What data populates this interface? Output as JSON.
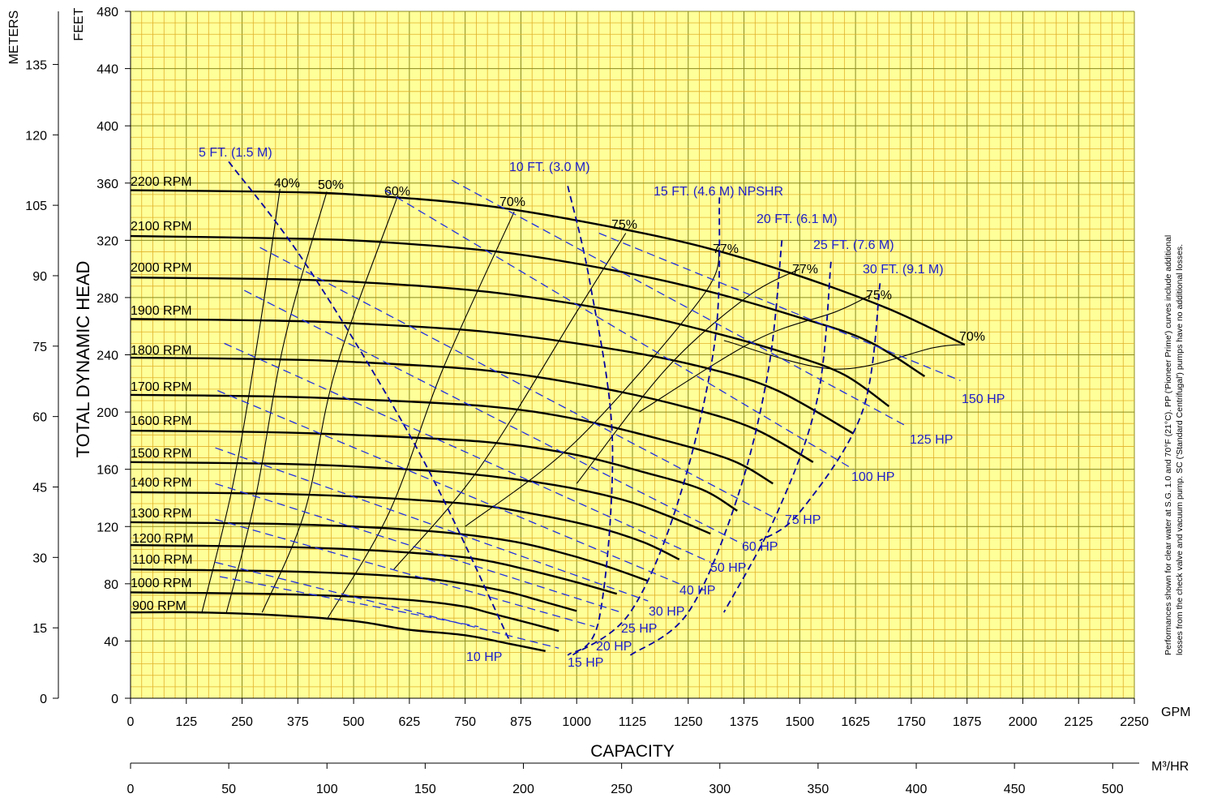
{
  "chart_data": {
    "type": "line",
    "title": "",
    "xlabel": "CAPACITY",
    "ylabel": "TOTAL DYNAMIC HEAD",
    "x_unit_primary": "GPM",
    "x_unit_secondary": "M³/HR",
    "y_unit_left_outer": "METERS",
    "y_unit_left_inner": "FEET",
    "xlim": [
      0,
      2250
    ],
    "ylim": [
      0,
      480
    ],
    "grid": true,
    "gpm_ticks": [
      "0",
      "125",
      "250",
      "375",
      "500",
      "625",
      "750",
      "875",
      "1000",
      "1125",
      "1250",
      "1375",
      "1500",
      "1625",
      "1750",
      "1875",
      "2000",
      "2125",
      "2250"
    ],
    "m3hr_ticks": [
      "0",
      "50",
      "100",
      "150",
      "200",
      "250",
      "300",
      "350",
      "400",
      "450",
      "500"
    ],
    "feet_ticks": [
      "0",
      "40",
      "80",
      "120",
      "160",
      "200",
      "240",
      "280",
      "320",
      "360",
      "400",
      "440",
      "480"
    ],
    "meter_ticks": [
      "0",
      "15",
      "30",
      "45",
      "60",
      "75",
      "90",
      "105",
      "120",
      "135"
    ],
    "note": "Performances shown for clear water at S.G. 1.0 and 70°F (21°C). PP ('Pioneer Prime') curves include additional losses from the check valve and vacuum pump. SC ('Standard Centrifugal') pumps have no additional losses.",
    "rpm_curves": [
      {
        "name": "2200 RPM",
        "points": [
          [
            0,
            355
          ],
          [
            300,
            354
          ],
          [
            500,
            352
          ],
          [
            800,
            344
          ],
          [
            1100,
            328
          ],
          [
            1300,
            314
          ],
          [
            1500,
            295
          ],
          [
            1700,
            272
          ],
          [
            1870,
            247
          ]
        ]
      },
      {
        "name": "2100 RPM",
        "points": [
          [
            0,
            323
          ],
          [
            400,
            321
          ],
          [
            600,
            318
          ],
          [
            850,
            311
          ],
          [
            1100,
            298
          ],
          [
            1300,
            284
          ],
          [
            1500,
            266
          ],
          [
            1650,
            250
          ],
          [
            1780,
            225
          ]
        ]
      },
      {
        "name": "2000 RPM",
        "points": [
          [
            0,
            294
          ],
          [
            300,
            293
          ],
          [
            500,
            291
          ],
          [
            800,
            284
          ],
          [
            1100,
            270
          ],
          [
            1300,
            256
          ],
          [
            1480,
            240
          ],
          [
            1600,
            226
          ],
          [
            1700,
            204
          ]
        ]
      },
      {
        "name": "1900 RPM",
        "points": [
          [
            0,
            265
          ],
          [
            300,
            264
          ],
          [
            500,
            262
          ],
          [
            800,
            256
          ],
          [
            1100,
            243
          ],
          [
            1300,
            230
          ],
          [
            1450,
            215
          ],
          [
            1620,
            185
          ]
        ]
      },
      {
        "name": "1800 RPM",
        "points": [
          [
            0,
            238
          ],
          [
            300,
            237
          ],
          [
            500,
            235
          ],
          [
            800,
            229
          ],
          [
            1050,
            217
          ],
          [
            1250,
            203
          ],
          [
            1400,
            188
          ],
          [
            1530,
            165
          ]
        ]
      },
      {
        "name": "1700 RPM",
        "points": [
          [
            0,
            212
          ],
          [
            300,
            211
          ],
          [
            500,
            209
          ],
          [
            800,
            204
          ],
          [
            1000,
            195
          ],
          [
            1200,
            180
          ],
          [
            1350,
            166
          ],
          [
            1440,
            150
          ]
        ]
      },
      {
        "name": "1600 RPM",
        "points": [
          [
            0,
            187
          ],
          [
            300,
            186
          ],
          [
            500,
            184
          ],
          [
            800,
            179
          ],
          [
            1000,
            170
          ],
          [
            1150,
            158
          ],
          [
            1280,
            146
          ],
          [
            1360,
            131
          ]
        ]
      },
      {
        "name": "1500 RPM",
        "points": [
          [
            0,
            165
          ],
          [
            300,
            164
          ],
          [
            500,
            162
          ],
          [
            750,
            157
          ],
          [
            950,
            149
          ],
          [
            1100,
            139
          ],
          [
            1200,
            128
          ],
          [
            1300,
            115
          ]
        ]
      },
      {
        "name": "1400 RPM",
        "points": [
          [
            0,
            144
          ],
          [
            300,
            143
          ],
          [
            500,
            141
          ],
          [
            750,
            136
          ],
          [
            900,
            129
          ],
          [
            1050,
            119
          ],
          [
            1150,
            109
          ],
          [
            1230,
            97
          ]
        ]
      },
      {
        "name": "1300 RPM",
        "points": [
          [
            0,
            123
          ],
          [
            300,
            122
          ],
          [
            500,
            120
          ],
          [
            700,
            116
          ],
          [
            850,
            110
          ],
          [
            950,
            103
          ],
          [
            1050,
            94
          ],
          [
            1160,
            82
          ]
        ]
      },
      {
        "name": "1200 RPM",
        "points": [
          [
            0,
            107
          ],
          [
            300,
            106
          ],
          [
            500,
            104
          ],
          [
            700,
            100
          ],
          [
            800,
            96
          ],
          [
            900,
            89
          ],
          [
            1000,
            81
          ],
          [
            1090,
            73
          ]
        ]
      },
      {
        "name": "1100 RPM",
        "points": [
          [
            0,
            90
          ],
          [
            300,
            89
          ],
          [
            500,
            87
          ],
          [
            650,
            84
          ],
          [
            750,
            80
          ],
          [
            850,
            74
          ],
          [
            920,
            68
          ],
          [
            1000,
            61
          ]
        ]
      },
      {
        "name": "1000 RPM",
        "points": [
          [
            0,
            74
          ],
          [
            300,
            73
          ],
          [
            500,
            71
          ],
          [
            650,
            68
          ],
          [
            750,
            64
          ],
          [
            800,
            60
          ],
          [
            900,
            52
          ],
          [
            960,
            47
          ]
        ]
      },
      {
        "name": "900 RPM",
        "points": [
          [
            0,
            60
          ],
          [
            150,
            60
          ],
          [
            330,
            58
          ],
          [
            500,
            54
          ],
          [
            620,
            48
          ],
          [
            750,
            44
          ],
          [
            850,
            38
          ],
          [
            930,
            33
          ]
        ]
      }
    ],
    "efficiency_curves": [
      {
        "name": "40%",
        "points": [
          [
            160,
            60
          ],
          [
            230,
            150
          ],
          [
            290,
            260
          ],
          [
            335,
            356
          ]
        ]
      },
      {
        "name": "50%",
        "points": [
          [
            215,
            60
          ],
          [
            280,
            140
          ],
          [
            345,
            250
          ],
          [
            440,
            354
          ]
        ]
      },
      {
        "name": "60%",
        "points": [
          [
            295,
            60
          ],
          [
            390,
            130
          ],
          [
            460,
            230
          ],
          [
            600,
            352
          ]
        ]
      },
      {
        "name": "70%",
        "points": [
          [
            440,
            55
          ],
          [
            580,
            130
          ],
          [
            700,
            230
          ],
          [
            860,
            340
          ]
        ]
      },
      {
        "name": "75%",
        "points": [
          [
            590,
            90
          ],
          [
            780,
            160
          ],
          [
            1000,
            270
          ],
          [
            1110,
            325
          ]
        ]
      },
      {
        "name": "77%",
        "points": [
          [
            750,
            120
          ],
          [
            1000,
            180
          ],
          [
            1280,
            280
          ],
          [
            1320,
            315
          ]
        ]
      },
      {
        "name": "77%",
        "points": [
          [
            1000,
            150
          ],
          [
            1200,
            230
          ],
          [
            1380,
            280
          ],
          [
            1500,
            300
          ]
        ]
      },
      {
        "name": "75%",
        "points": [
          [
            1140,
            200
          ],
          [
            1400,
            250
          ],
          [
            1580,
            270
          ],
          [
            1660,
            282
          ]
        ]
      },
      {
        "name": "70%",
        "points": [
          [
            1330,
            250
          ],
          [
            1580,
            230
          ],
          [
            1800,
            245
          ],
          [
            1870,
            247
          ]
        ]
      }
    ],
    "npshr_curves": [
      {
        "name": "5 FT. (1.5 M)",
        "points": [
          [
            220,
            375
          ],
          [
            400,
            300
          ],
          [
            650,
            170
          ],
          [
            850,
            40
          ]
        ]
      },
      {
        "name": "10 FT. (3.0 M)",
        "points": [
          [
            980,
            358
          ],
          [
            1030,
            290
          ],
          [
            1080,
            180
          ],
          [
            1050,
            55
          ],
          [
            980,
            30
          ]
        ]
      },
      {
        "name": "15 FT. (4.6 M) NPSHR",
        "points": [
          [
            1320,
            350
          ],
          [
            1310,
            250
          ],
          [
            1230,
            140
          ],
          [
            1120,
            60
          ],
          [
            990,
            30
          ]
        ]
      },
      {
        "name": "20 FT. (6.1 M)",
        "points": [
          [
            1460,
            320
          ],
          [
            1430,
            230
          ],
          [
            1360,
            140
          ],
          [
            1250,
            60
          ],
          [
            1120,
            30
          ]
        ]
      },
      {
        "name": "25 FT. (7.6 M)",
        "points": [
          [
            1570,
            305
          ],
          [
            1540,
            210
          ],
          [
            1450,
            130
          ],
          [
            1330,
            60
          ]
        ]
      },
      {
        "name": "30 FT. (9.1 M)",
        "points": [
          [
            1680,
            290
          ],
          [
            1640,
            200
          ],
          [
            1500,
            130
          ],
          [
            1410,
            110
          ]
        ]
      }
    ],
    "hp_lines": [
      {
        "name": "150 HP",
        "points": [
          [
            1050,
            325
          ],
          [
            1860,
            222
          ]
        ]
      },
      {
        "name": "125 HP",
        "points": [
          [
            720,
            362
          ],
          [
            1740,
            190
          ]
        ]
      },
      {
        "name": "100 HP",
        "points": [
          [
            570,
            355
          ],
          [
            1620,
            160
          ]
        ]
      },
      {
        "name": "75 HP",
        "points": [
          [
            290,
            315
          ],
          [
            1450,
            125
          ]
        ]
      },
      {
        "name": "60 HP",
        "points": [
          [
            255,
            285
          ],
          [
            1370,
            108
          ]
        ]
      },
      {
        "name": "50 HP",
        "points": [
          [
            210,
            248
          ],
          [
            1300,
            95
          ]
        ]
      },
      {
        "name": "40 HP",
        "points": [
          [
            195,
            215
          ],
          [
            1230,
            80
          ]
        ]
      },
      {
        "name": "30 HP",
        "points": [
          [
            190,
            175
          ],
          [
            1160,
            68
          ]
        ]
      },
      {
        "name": "25 HP",
        "points": [
          [
            190,
            150
          ],
          [
            1100,
            60
          ]
        ]
      },
      {
        "name": "20 HP",
        "points": [
          [
            190,
            125
          ],
          [
            1040,
            50
          ]
        ]
      },
      {
        "name": "15 HP",
        "points": [
          [
            190,
            95
          ],
          [
            960,
            35
          ]
        ]
      },
      {
        "name": "10 HP",
        "points": [
          [
            200,
            85
          ],
          [
            780,
            50
          ]
        ]
      }
    ]
  }
}
